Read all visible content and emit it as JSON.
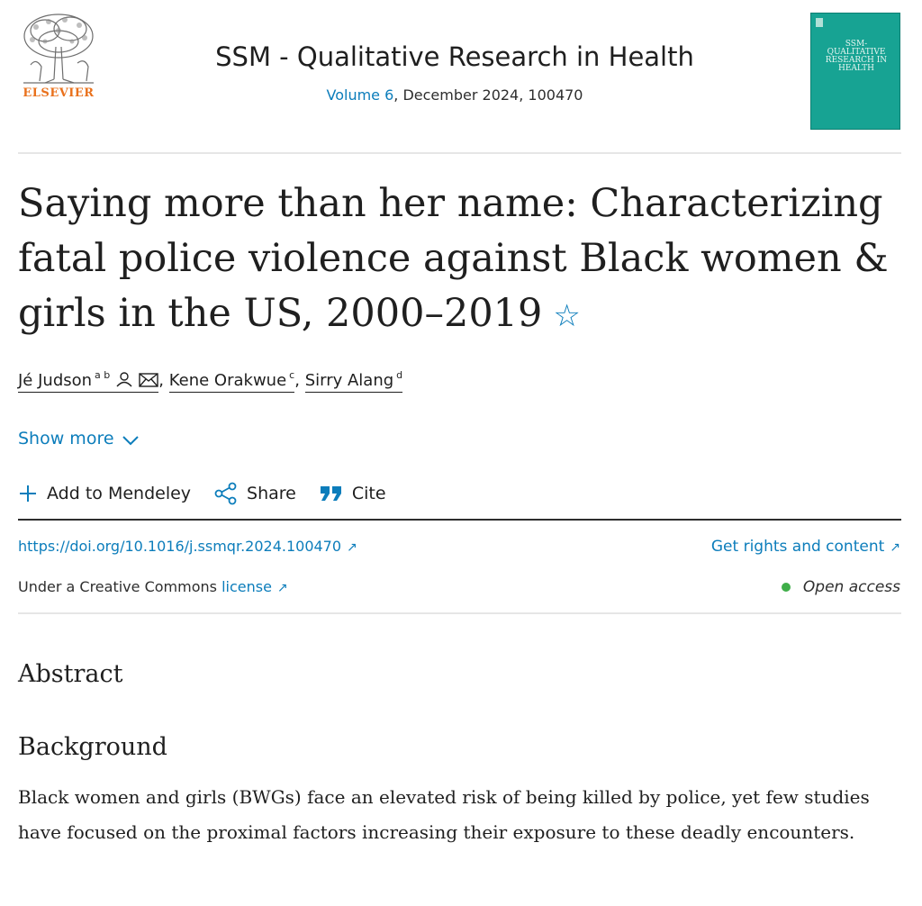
{
  "header": {
    "publisher": "ELSEVIER",
    "journal_title": "SSM - Qualitative Research in Health",
    "volume_link": "Volume 6",
    "volume_rest": ", December 2024, 100470",
    "cover_text": "SSM-\nQUALITATIVE\nRESEARCH IN\nHEALTH"
  },
  "article": {
    "title": "Saying more than her name: Characterizing fatal police violence against Black women & girls in the US, 2000–2019",
    "authors": [
      {
        "name": "Jé Judson",
        "sup": "a b"
      },
      {
        "name": "Kene Orakwue",
        "sup": "c"
      },
      {
        "name": "Sirry Alang",
        "sup": "d"
      }
    ],
    "separator": ",",
    "show_more": "Show more"
  },
  "actions": {
    "mendeley": "Add to Mendeley",
    "share": "Share",
    "cite": "Cite"
  },
  "links": {
    "doi": "https://doi.org/10.1016/j.ssmqr.2024.100470",
    "rights": "Get rights and content",
    "license_prefix": "Under a Creative Commons ",
    "license_link": "license",
    "open_access": "Open access"
  },
  "abstract": {
    "heading": "Abstract",
    "subheading": "Background",
    "text": "Black women and girls (BWGs) face an elevated risk of being killed by police, yet few studies have focused on the proximal factors increasing their exposure to these deadly encounters."
  },
  "colors": {
    "link": "#0c7dbb",
    "elsevier_orange": "#e9711c",
    "cover_teal": "#17a393",
    "open_access_green": "#3fae49"
  },
  "icons": [
    "star-icon",
    "person-icon",
    "envelope-icon",
    "chevron-down-icon",
    "plus-icon",
    "share-icon",
    "quote-icon",
    "external-link-icon"
  ]
}
